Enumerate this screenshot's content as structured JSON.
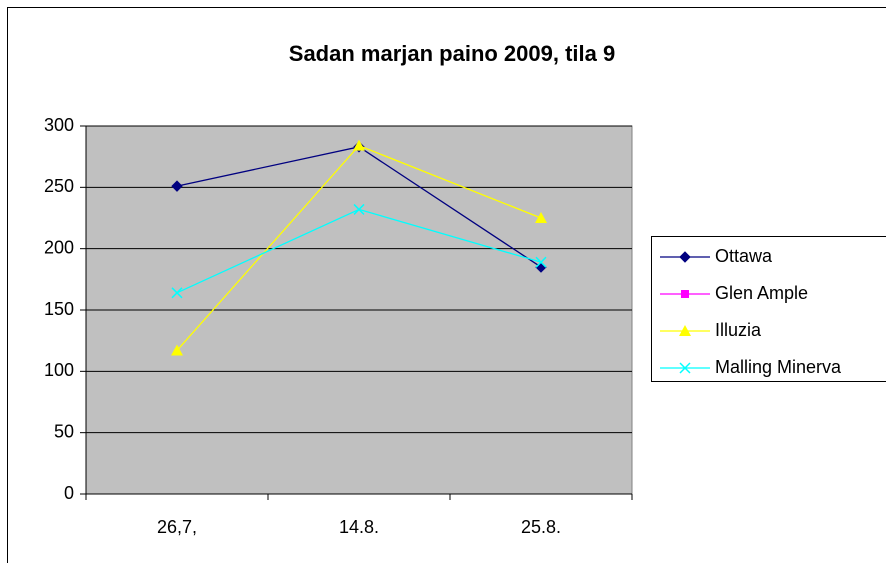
{
  "chart_data": {
    "type": "line",
    "title": "Sadan marjan paino 2009, tila 9",
    "categories": [
      "26,7,",
      "14.8.",
      "25.8."
    ],
    "series": [
      {
        "name": "Ottawa",
        "color": "#000080",
        "marker": "diamond",
        "values": [
          251,
          283,
          185
        ]
      },
      {
        "name": "Glen Ample",
        "color": "#FF00FF",
        "marker": "square",
        "values": [
          null,
          null,
          null
        ]
      },
      {
        "name": "Illuzia",
        "color": "#FFFF00",
        "marker": "triangle",
        "values": [
          117,
          284,
          225
        ]
      },
      {
        "name": "Malling Minerva",
        "color": "#00FFFF",
        "marker": "x",
        "values": [
          164,
          232,
          189
        ]
      }
    ],
    "ylim": [
      0,
      300
    ],
    "yticks": [
      0,
      50,
      100,
      150,
      200,
      250,
      300
    ],
    "grid": true,
    "legend": "right"
  }
}
